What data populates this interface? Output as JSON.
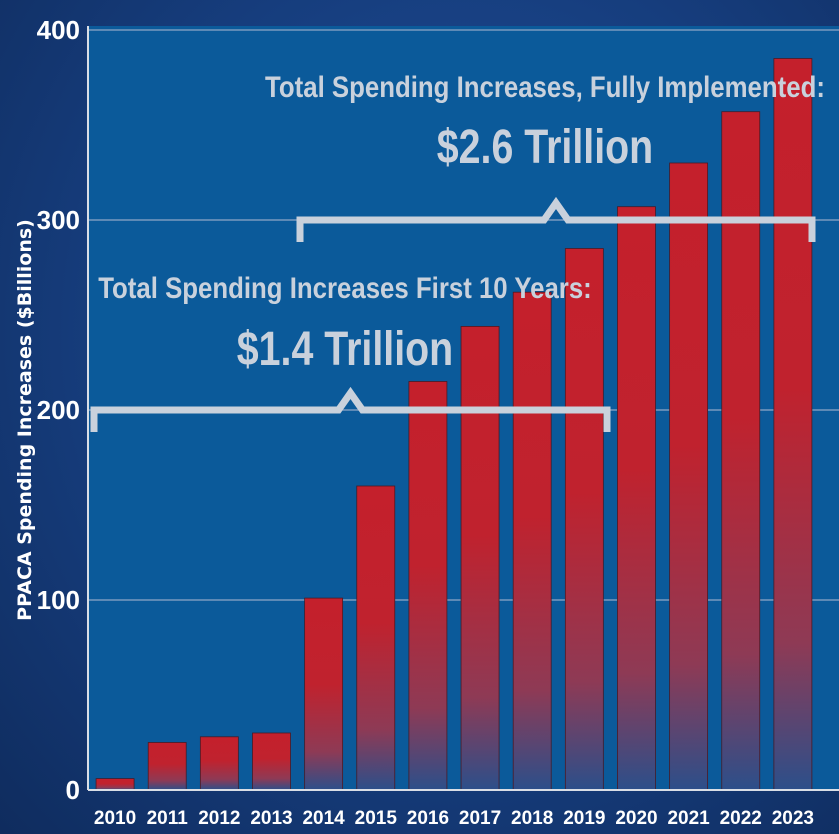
{
  "chart_data": {
    "type": "bar",
    "ylabel": "PPACA Spending Increases  ($Billions)",
    "xlabel": "",
    "title": "",
    "categories": [
      "2010",
      "2011",
      "2012",
      "2013",
      "2014",
      "2015",
      "2016",
      "2017",
      "2018",
      "2019",
      "2020",
      "2021",
      "2022",
      "2023"
    ],
    "values": [
      6,
      25,
      28,
      30,
      101,
      160,
      215,
      244,
      262,
      285,
      307,
      330,
      357,
      385
    ],
    "ylim": [
      0,
      400
    ],
    "yticks": [
      "0",
      "100",
      "200",
      "300",
      "400"
    ],
    "grid": true,
    "bar_color": "#c4202c",
    "plot_background": "#0b5a9a",
    "annotations": [
      {
        "label": "Total Spending Increases, Fully Implemented:",
        "value": "$2.6 Trillion",
        "bracket_years": [
          "2014",
          "2023"
        ]
      },
      {
        "label": "Total Spending Increases First 10 Years:",
        "value": "$1.4 Trillion",
        "bracket_years": [
          "2010",
          "2019"
        ]
      }
    ]
  }
}
